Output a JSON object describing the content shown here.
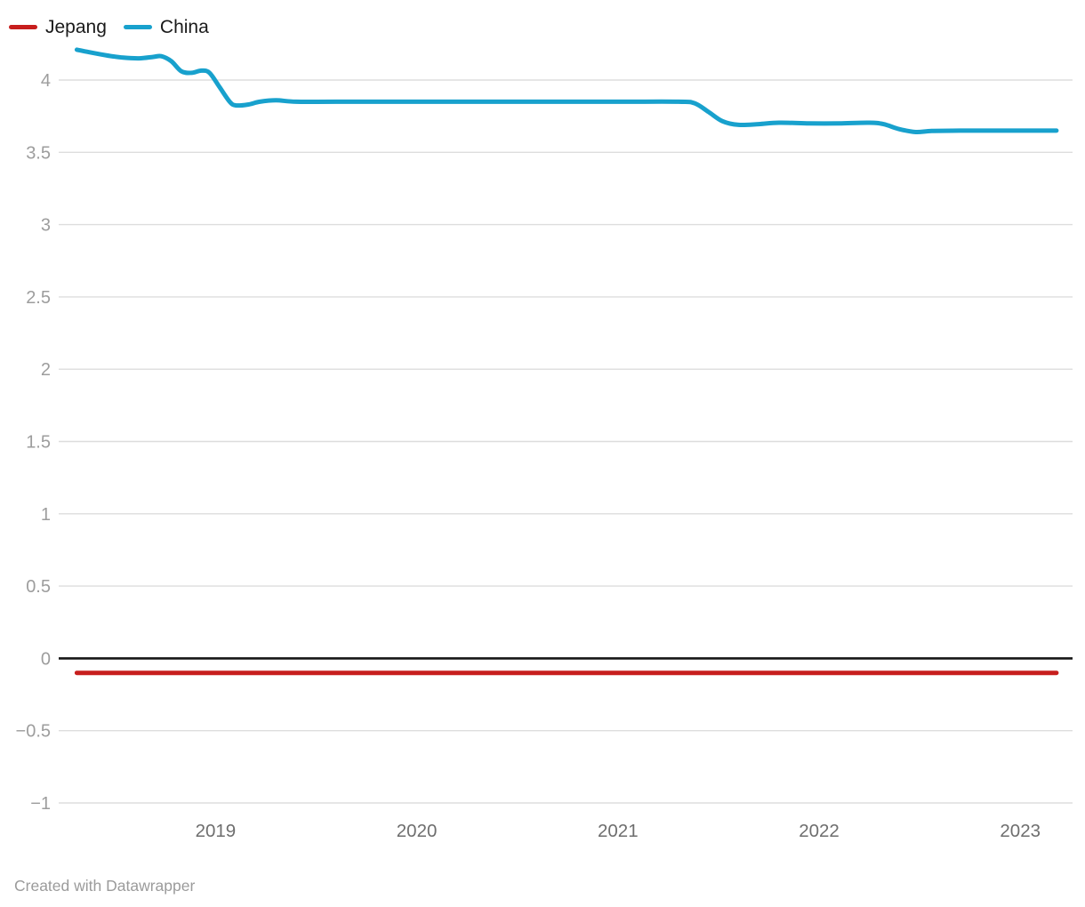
{
  "legend": {
    "items": [
      {
        "label": "Jepang"
      },
      {
        "label": "China"
      }
    ]
  },
  "chart_data": {
    "type": "line",
    "title": "",
    "xlabel": "",
    "ylabel": "",
    "xlim": [
      2018.22,
      2023.26
    ],
    "ylim": [
      -1,
      4.55
    ],
    "grid": "horizontal",
    "legend_position": "top-left",
    "xticks": [
      2019,
      2020,
      2021,
      2022,
      2023
    ],
    "yticks": [
      -1,
      -0.5,
      0,
      0.5,
      1,
      1.5,
      2,
      2.5,
      3,
      3.5,
      4
    ],
    "ytick_labels": [
      "−1",
      "−0.5",
      "0",
      "0.5",
      "1",
      "1.5",
      "2",
      "2.5",
      "3",
      "3.5",
      "4"
    ],
    "zero_baseline": true,
    "colors": {
      "grid": "#dddddd",
      "zero_line": "#161616",
      "jepang": "#c71e1d",
      "china": "#18a1cd"
    },
    "series": [
      {
        "name": "Jepang",
        "color": "#c71e1d",
        "points": [
          [
            2018.31,
            -0.1
          ],
          [
            2019.0,
            -0.1
          ],
          [
            2020.0,
            -0.1
          ],
          [
            2021.0,
            -0.1
          ],
          [
            2022.0,
            -0.1
          ],
          [
            2023.18,
            -0.1
          ]
        ]
      },
      {
        "name": "China",
        "color": "#18a1cd",
        "points": [
          [
            2018.31,
            4.21
          ],
          [
            2018.38,
            4.19
          ],
          [
            2018.46,
            4.17
          ],
          [
            2018.54,
            4.155
          ],
          [
            2018.62,
            4.15
          ],
          [
            2018.69,
            4.16
          ],
          [
            2018.73,
            4.165
          ],
          [
            2018.78,
            4.13
          ],
          [
            2018.83,
            4.06
          ],
          [
            2018.88,
            4.05
          ],
          [
            2018.93,
            4.065
          ],
          [
            2018.97,
            4.05
          ],
          [
            2019.02,
            3.95
          ],
          [
            2019.07,
            3.85
          ],
          [
            2019.1,
            3.825
          ],
          [
            2019.16,
            3.83
          ],
          [
            2019.22,
            3.85
          ],
          [
            2019.3,
            3.86
          ],
          [
            2019.4,
            3.85
          ],
          [
            2019.6,
            3.85
          ],
          [
            2020.0,
            3.85
          ],
          [
            2020.5,
            3.85
          ],
          [
            2021.0,
            3.85
          ],
          [
            2021.3,
            3.85
          ],
          [
            2021.38,
            3.84
          ],
          [
            2021.45,
            3.78
          ],
          [
            2021.52,
            3.715
          ],
          [
            2021.6,
            3.69
          ],
          [
            2021.7,
            3.695
          ],
          [
            2021.8,
            3.705
          ],
          [
            2021.95,
            3.7
          ],
          [
            2022.1,
            3.7
          ],
          [
            2022.25,
            3.705
          ],
          [
            2022.32,
            3.695
          ],
          [
            2022.4,
            3.66
          ],
          [
            2022.48,
            3.64
          ],
          [
            2022.56,
            3.648
          ],
          [
            2022.7,
            3.65
          ],
          [
            2023.0,
            3.65
          ],
          [
            2023.18,
            3.65
          ]
        ]
      }
    ]
  },
  "footer": {
    "credit": "Created with Datawrapper"
  }
}
